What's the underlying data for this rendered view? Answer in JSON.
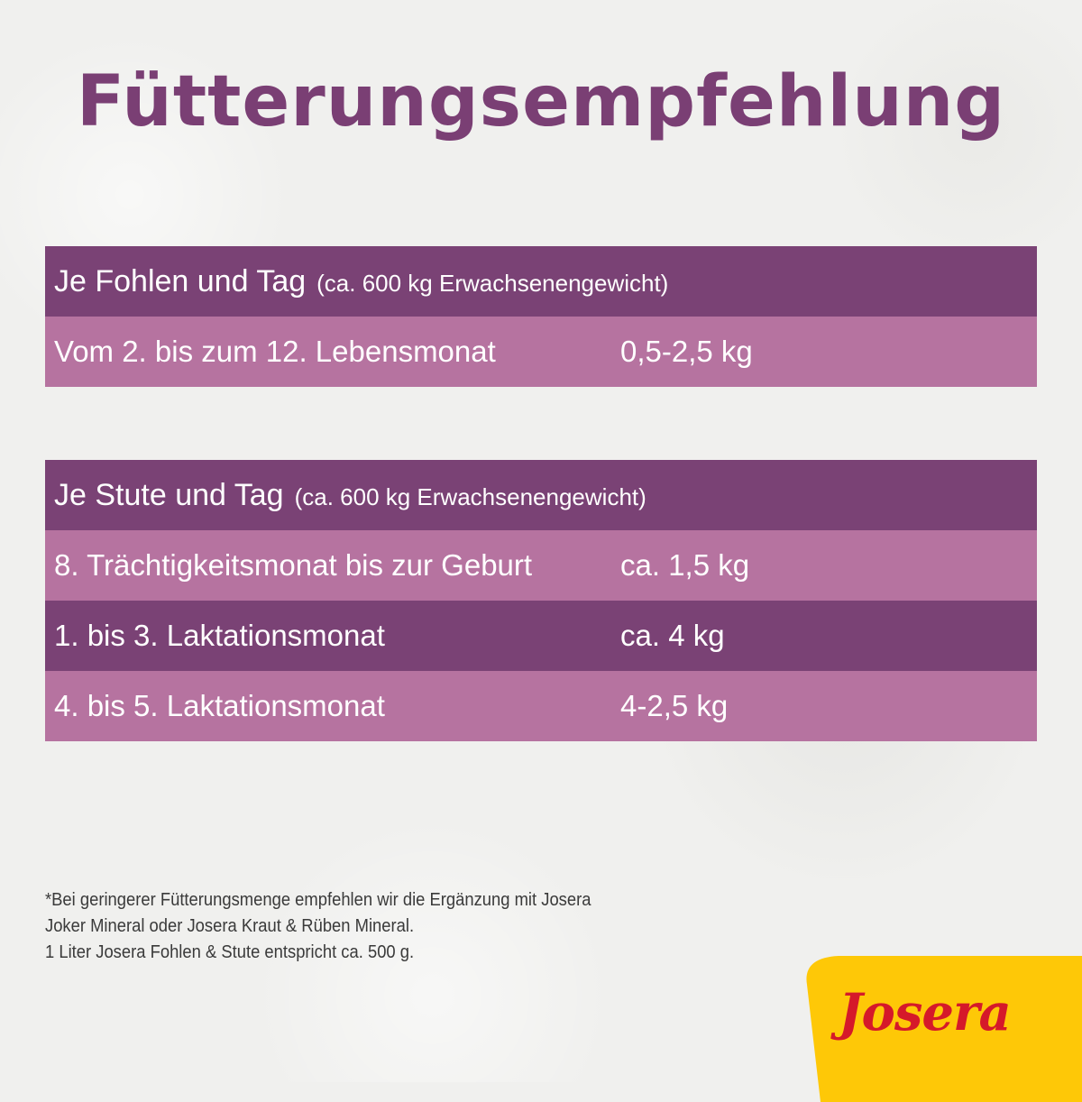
{
  "title": "Fütterungsempfehlung",
  "table_foal": {
    "header_main": "Je Fohlen und Tag",
    "header_sub": "(ca. 600 kg Erwachsenengewicht)",
    "rows": [
      {
        "label": "Vom 2. bis zum 12. Lebensmonat",
        "value": "0,5-2,5 kg"
      }
    ]
  },
  "table_mare": {
    "header_main": "Je Stute und Tag",
    "header_sub": "(ca. 600 kg Erwachsenengewicht)",
    "rows": [
      {
        "label": "8. Trächtigkeitsmonat bis zur Geburt",
        "value": "ca. 1,5 kg"
      },
      {
        "label": "1. bis 3. Laktationsmonat",
        "value": "ca. 4 kg"
      },
      {
        "label": "4. bis 5. Laktationsmonat",
        "value": "4-2,5 kg"
      }
    ]
  },
  "footnote": {
    "line1": "*Bei geringerer Fütterungsmenge empfehlen wir die Ergänzung mit Josera",
    "line2": "Joker Mineral oder Josera Kraut & Rüben Mineral.",
    "line3": "1 Liter Josera Fohlen & Stute entspricht ca. 500 g."
  },
  "logo": {
    "text": "Josera",
    "brand_red": "#d5192a",
    "badge_yellow": "#fec807"
  },
  "colors": {
    "title_purple": "#7a3f74",
    "row_dark": "#7a4275",
    "row_light": "#b673a0",
    "background": "#f0f0ee"
  }
}
